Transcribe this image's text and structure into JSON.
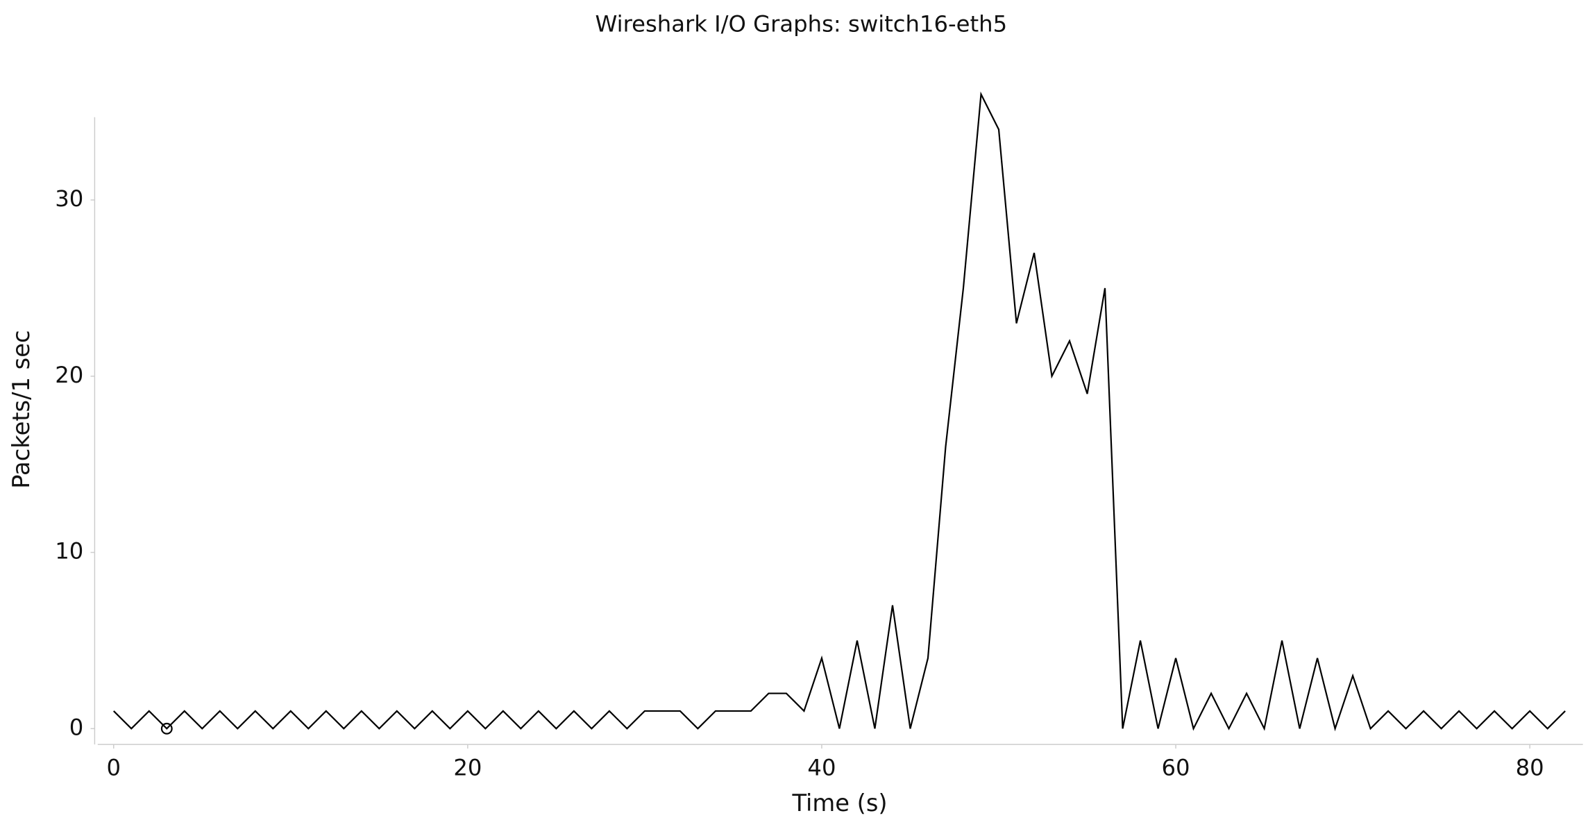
{
  "chart_data": {
    "type": "line",
    "title": "Wireshark I/O Graphs: switch16-eth5",
    "xlabel": "Time (s)",
    "ylabel": "Packets/1 sec",
    "x": [
      0,
      1,
      2,
      3,
      4,
      5,
      6,
      7,
      8,
      9,
      10,
      11,
      12,
      13,
      14,
      15,
      16,
      17,
      18,
      19,
      20,
      21,
      22,
      23,
      24,
      25,
      26,
      27,
      28,
      29,
      30,
      31,
      32,
      33,
      34,
      35,
      36,
      37,
      38,
      39,
      40,
      41,
      42,
      43,
      44,
      45,
      46,
      47,
      48,
      49,
      50,
      51,
      52,
      53,
      54,
      55,
      56,
      57,
      58,
      59,
      60,
      61,
      62,
      63,
      64,
      65,
      66,
      67,
      68,
      69,
      70,
      71,
      72,
      73,
      74,
      75,
      76,
      77,
      78,
      79,
      80,
      81,
      82
    ],
    "series": [
      {
        "name": "switch16-eth5",
        "color": "#000000",
        "values": [
          1,
          0,
          1,
          0,
          1,
          0,
          1,
          0,
          1,
          0,
          1,
          0,
          1,
          0,
          1,
          0,
          1,
          0,
          1,
          0,
          1,
          0,
          1,
          0,
          1,
          0,
          1,
          0,
          1,
          0,
          1,
          1,
          1,
          0,
          1,
          1,
          1,
          2,
          2,
          1,
          4,
          0,
          5,
          0,
          7,
          0,
          4,
          16,
          25,
          36,
          34,
          23,
          27,
          20,
          22,
          19,
          25,
          0,
          5,
          0,
          4,
          0,
          2,
          0,
          2,
          0,
          5,
          0,
          4,
          0,
          3,
          0,
          1,
          0,
          1,
          0,
          1,
          0,
          1,
          0,
          1,
          0,
          1
        ]
      }
    ],
    "marker_at_x": 3,
    "xlim": [
      -0.9,
      83
    ],
    "ylim": [
      -0.9,
      34.7
    ],
    "xticks": [
      0,
      20,
      40,
      60,
      80
    ],
    "yticks": [
      0,
      10,
      20,
      30
    ],
    "grid": false
  }
}
